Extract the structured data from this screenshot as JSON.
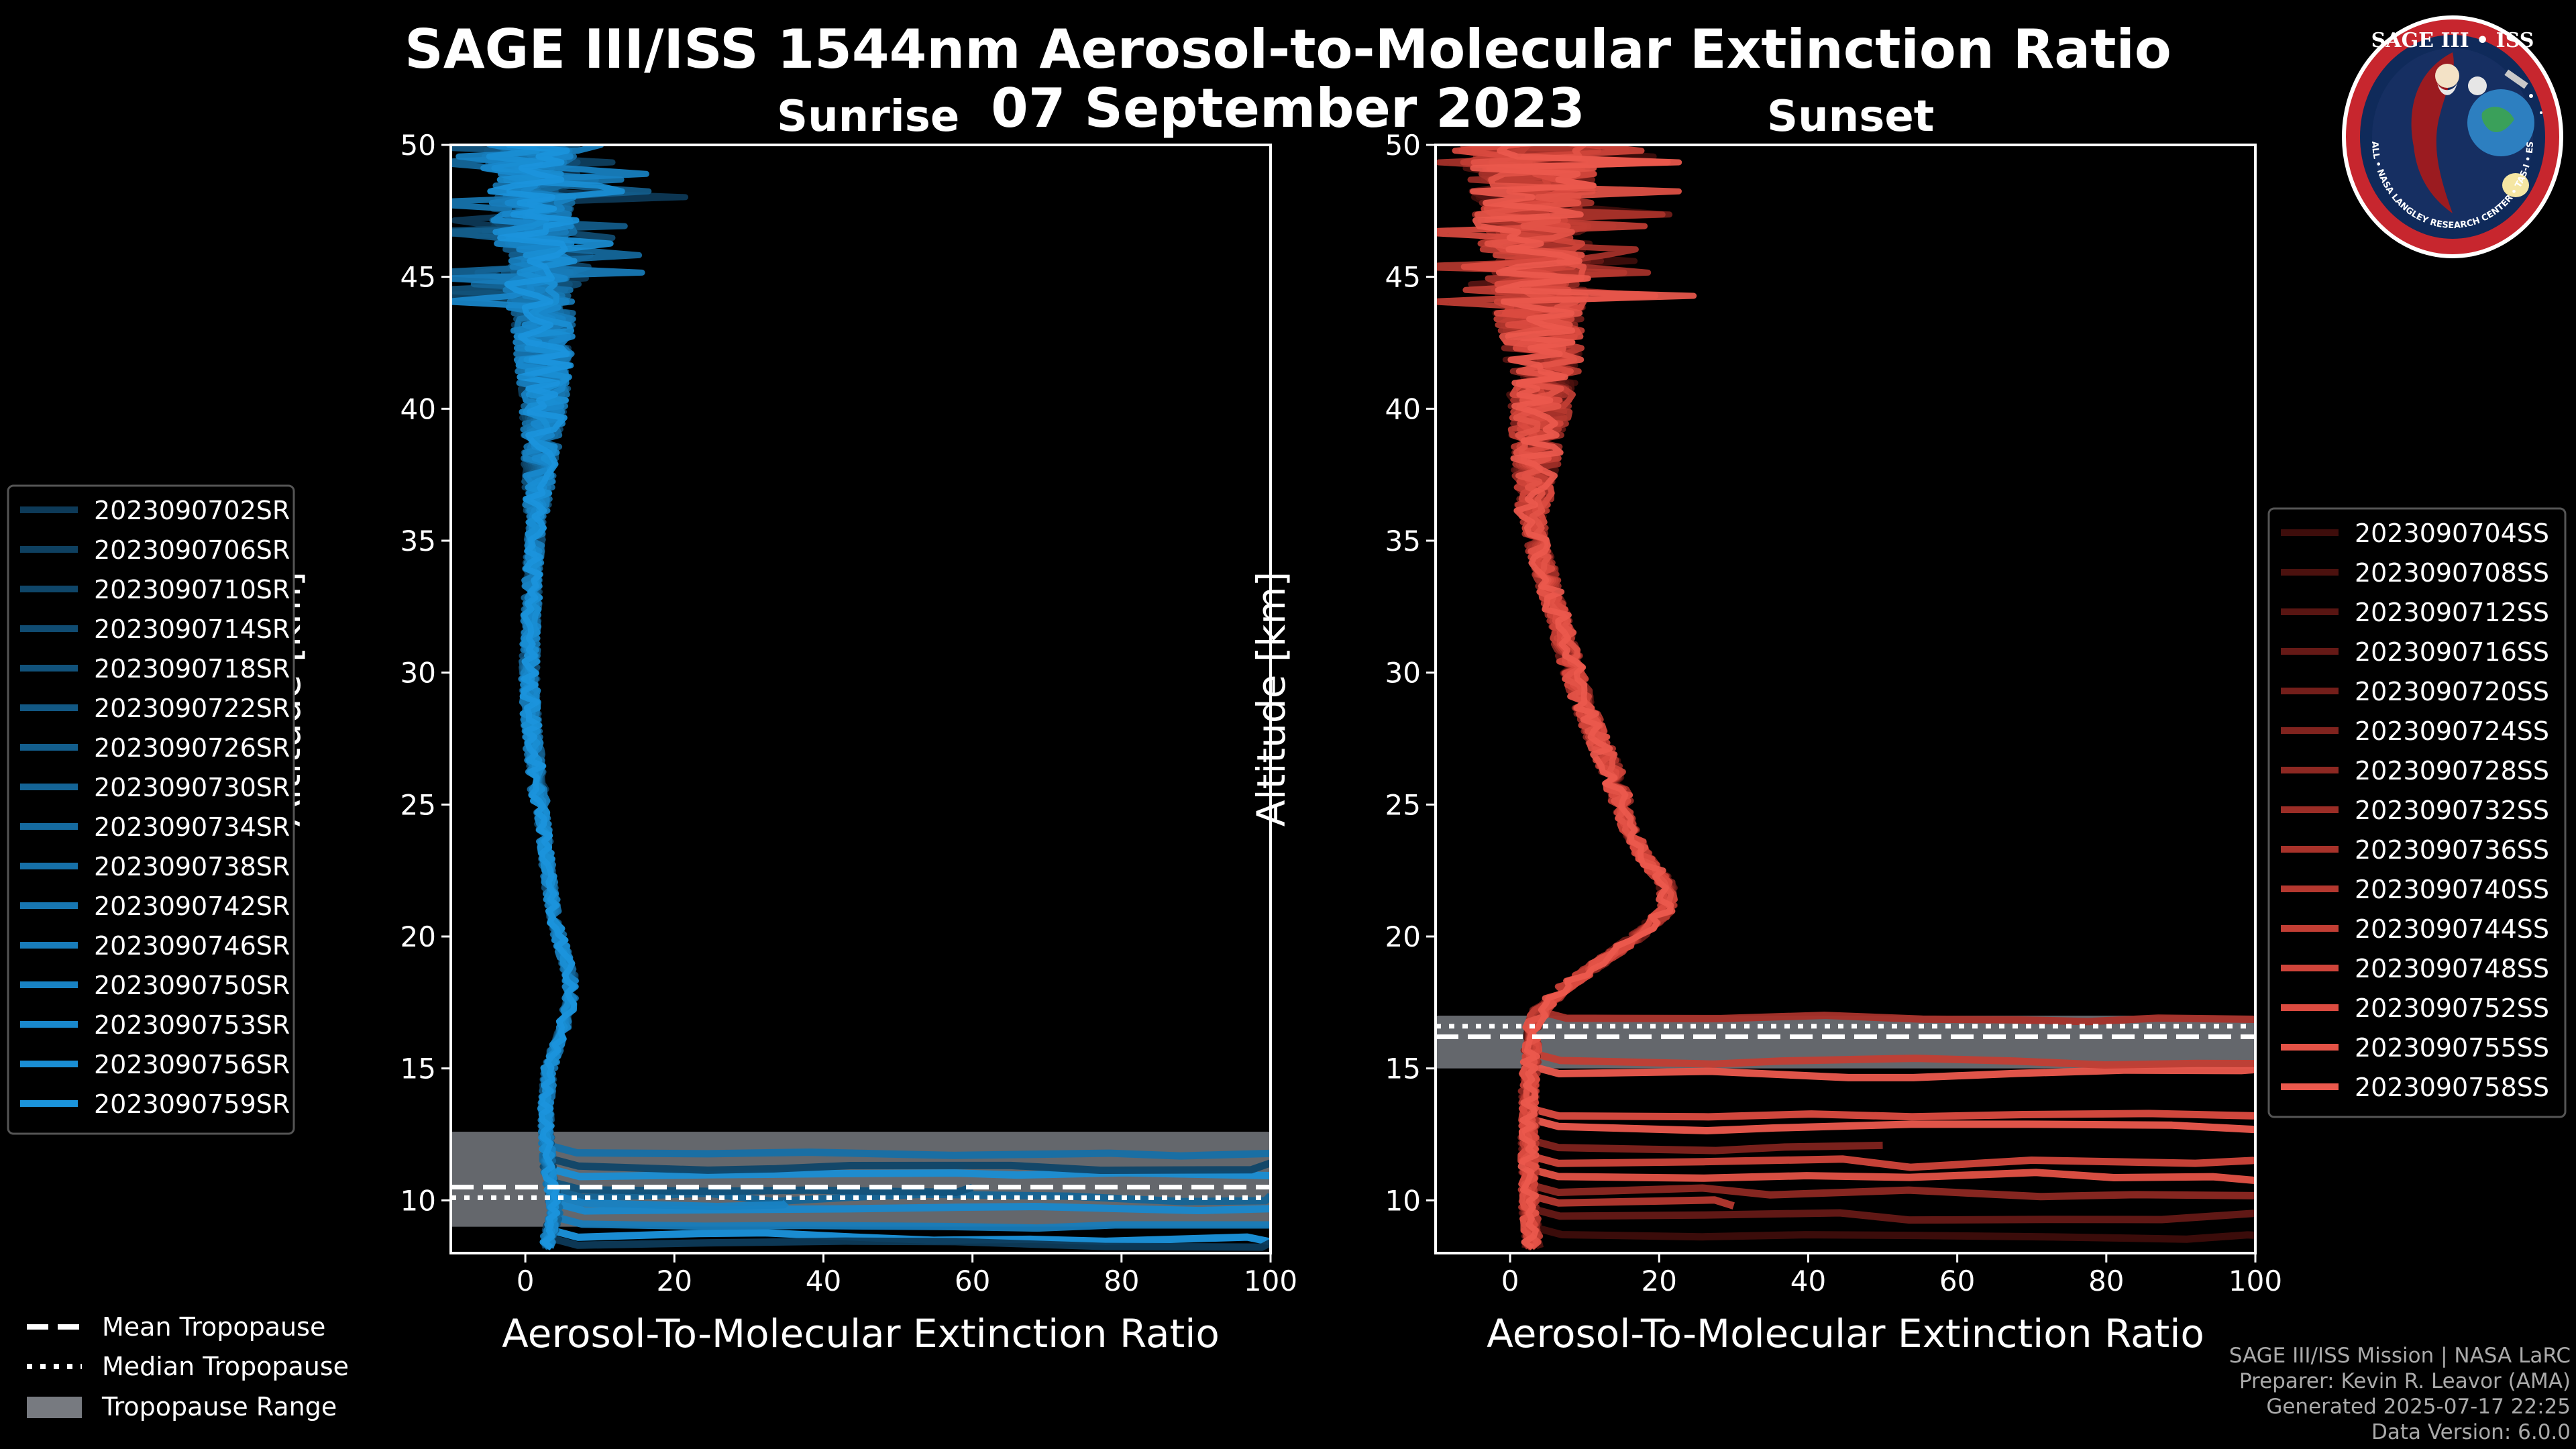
{
  "title": "SAGE III/ISS 1544nm Aerosol-to-Molecular Extinction Ratio",
  "date": "07 September 2023",
  "logo": {
    "line1": "SAGE III • ISS",
    "ring": "BALL • NASA LANGLEY RESEARCH CENTER • TAS-I • ESA"
  },
  "footer": {
    "mission": "SAGE III/ISS Mission | NASA LaRC",
    "preparer": "Preparer: Kevin R. Leavor (AMA)",
    "generated": "Generated 2025-07-17 22:25",
    "version": "Data Version: 6.0.0"
  },
  "tropopause_legend": {
    "mean": "Mean Tropopause",
    "median": "Median Tropopause",
    "range": "Tropopause Range"
  },
  "chart_data": [
    {
      "type": "line",
      "title": "Sunrise",
      "xlabel": "Aerosol-To-Molecular Extinction Ratio",
      "ylabel": "Altitude [km]",
      "xlim": [
        -10,
        100
      ],
      "ylim": [
        8,
        50
      ],
      "xticks": [
        0,
        20,
        40,
        60,
        80,
        100
      ],
      "yticks": [
        10,
        15,
        20,
        25,
        30,
        35,
        40,
        45,
        50
      ],
      "legend_position": "outside-left",
      "tropopause": {
        "mean": 10.5,
        "median": 10.1,
        "range": [
          9.0,
          12.6
        ]
      },
      "profile_nodes": {
        "alt": [
          8.5,
          9.5,
          10.5,
          11.5,
          12.5,
          13.5,
          15,
          16.5,
          17.5,
          18.5,
          19.5,
          20.5,
          21.5,
          22.5,
          24,
          26,
          28,
          30,
          32,
          34,
          36,
          38,
          40,
          42,
          44,
          46,
          48,
          50
        ],
        "ratio": [
          3.0,
          4.0,
          3.5,
          3.0,
          2.8,
          2.8,
          3.2,
          5.0,
          6.0,
          6.0,
          5.0,
          4.0,
          3.5,
          3.0,
          2.5,
          1.5,
          0.8,
          0.5,
          0.8,
          1.0,
          1.5,
          2.0,
          2.5,
          2.5,
          2.0,
          1.5,
          1.0,
          0.5
        ]
      },
      "series": [
        {
          "name": "2023090702SR",
          "color": "#0d3a58"
        },
        {
          "name": "2023090706SR",
          "color": "#0e4060"
        },
        {
          "name": "2023090710SR",
          "color": "#0f4669"
        },
        {
          "name": "2023090714SR",
          "color": "#104c72"
        },
        {
          "name": "2023090718SR",
          "color": "#11527b"
        },
        {
          "name": "2023090722SR",
          "color": "#125884"
        },
        {
          "name": "2023090726SR",
          "color": "#135e8d"
        },
        {
          "name": "2023090730SR",
          "color": "#146496"
        },
        {
          "name": "2023090734SR",
          "color": "#156a9f"
        },
        {
          "name": "2023090738SR",
          "color": "#1670a8"
        },
        {
          "name": "2023090742SR",
          "color": "#1776b1"
        },
        {
          "name": "2023090746SR",
          "color": "#187cba"
        },
        {
          "name": "2023090750SR",
          "color": "#1882c3"
        },
        {
          "name": "2023090753SR",
          "color": "#1988cc"
        },
        {
          "name": "2023090756SR",
          "color": "#1a8ed4"
        },
        {
          "name": "2023090759SR",
          "color": "#1b94dc"
        }
      ],
      "low_streaks": [
        {
          "alt": 8.6,
          "to": 100,
          "s": 15
        },
        {
          "alt": 9.1,
          "to": 100,
          "s": 11
        },
        {
          "alt": 9.6,
          "to": 100,
          "s": 13
        },
        {
          "alt": 10.1,
          "to": 100,
          "s": 7
        },
        {
          "alt": 10.4,
          "to": 60,
          "s": 4
        },
        {
          "alt": 10.9,
          "to": 100,
          "s": 14
        },
        {
          "alt": 11.3,
          "to": 100,
          "s": 2
        },
        {
          "alt": 11.8,
          "to": 100,
          "s": 9
        },
        {
          "alt": 8.3,
          "to": 100,
          "s": 0
        },
        {
          "alt": 9.9,
          "to": 35,
          "s": 12
        }
      ]
    },
    {
      "type": "line",
      "title": "Sunset",
      "xlabel": "Aerosol-To-Molecular Extinction Ratio",
      "ylabel": "Altitude [km]",
      "xlim": [
        -10,
        100
      ],
      "ylim": [
        8,
        50
      ],
      "xticks": [
        0,
        20,
        40,
        60,
        80,
        100
      ],
      "yticks": [
        10,
        15,
        20,
        25,
        30,
        35,
        40,
        45,
        50
      ],
      "legend_position": "outside-right",
      "tropopause": {
        "mean": 16.2,
        "median": 16.6,
        "range": [
          15.0,
          17.0
        ]
      },
      "profile_nodes": {
        "alt": [
          8.5,
          10,
          11.5,
          13,
          14.5,
          15.5,
          16.5,
          17.2,
          18,
          19,
          20,
          21,
          22,
          23,
          24,
          25,
          26,
          27,
          28,
          29,
          30,
          31,
          32,
          33,
          34,
          35,
          36,
          38,
          40,
          42,
          44,
          46,
          48,
          50
        ],
        "ratio": [
          3.0,
          2.5,
          2.5,
          2.5,
          2.5,
          2.8,
          3.0,
          4.0,
          7.0,
          12.0,
          17.0,
          21.0,
          21.0,
          18.0,
          16.0,
          15.0,
          14.0,
          12.5,
          11.0,
          9.5,
          8.5,
          7.5,
          6.5,
          5.5,
          4.5,
          3.5,
          3.0,
          3.5,
          4.0,
          4.5,
          4.0,
          3.5,
          3.0,
          2.5
        ]
      },
      "series": [
        {
          "name": "2023090704SS",
          "color": "#3e0d0b"
        },
        {
          "name": "2023090708SS",
          "color": "#4b110e"
        },
        {
          "name": "2023090712SS",
          "color": "#581512"
        },
        {
          "name": "2023090716SS",
          "color": "#651916"
        },
        {
          "name": "2023090720SS",
          "color": "#731e1a"
        },
        {
          "name": "2023090724SS",
          "color": "#80231e"
        },
        {
          "name": "2023090728SS",
          "color": "#8d2822"
        },
        {
          "name": "2023090732SS",
          "color": "#9b2d26"
        },
        {
          "name": "2023090736SS",
          "color": "#a8322a"
        },
        {
          "name": "2023090740SS",
          "color": "#b5382f"
        },
        {
          "name": "2023090744SS",
          "color": "#c23e34"
        },
        {
          "name": "2023090748SS",
          "color": "#cf443a"
        },
        {
          "name": "2023090752SS",
          "color": "#db4b40"
        },
        {
          "name": "2023090755SS",
          "color": "#e35246"
        },
        {
          "name": "2023090758SS",
          "color": "#eb594d"
        }
      ],
      "low_streaks": [
        {
          "alt": 8.7,
          "to": 100,
          "s": 0
        },
        {
          "alt": 9.4,
          "to": 100,
          "s": 3
        },
        {
          "alt": 10.3,
          "to": 100,
          "s": 6
        },
        {
          "alt": 10.9,
          "to": 100,
          "s": 13
        },
        {
          "alt": 11.4,
          "to": 100,
          "s": 11
        },
        {
          "alt": 12.8,
          "to": 100,
          "s": 14
        },
        {
          "alt": 13.2,
          "to": 100,
          "s": 12
        },
        {
          "alt": 14.8,
          "to": 100,
          "s": 14
        },
        {
          "alt": 15.3,
          "to": 100,
          "s": 10
        },
        {
          "alt": 16.9,
          "to": 100,
          "s": 8
        },
        {
          "alt": 9.9,
          "to": 30,
          "s": 9
        },
        {
          "alt": 12.0,
          "to": 50,
          "s": 5
        }
      ]
    }
  ]
}
